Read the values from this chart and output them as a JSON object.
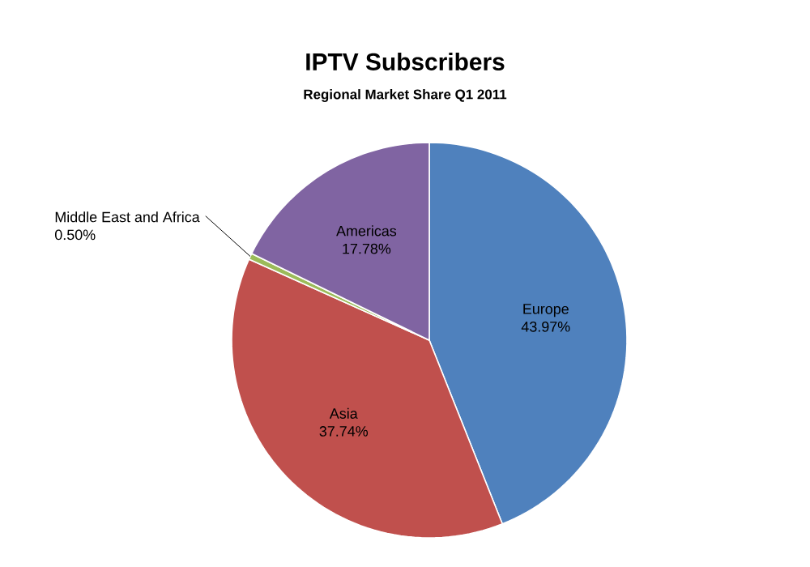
{
  "chart_data": {
    "type": "pie",
    "title": "IPTV Subscribers",
    "subtitle": "Regional Market Share Q1 2011",
    "categories": [
      "Europe",
      "Asia",
      "Middle East and Africa",
      "Americas"
    ],
    "values": [
      43.97,
      37.74,
      0.5,
      17.78
    ],
    "value_labels": [
      "43.97%",
      "37.74%",
      "0.50%",
      "17.78%"
    ],
    "colors": [
      "#4f81bd",
      "#c0504d",
      "#9bbb59",
      "#8064a2"
    ]
  }
}
